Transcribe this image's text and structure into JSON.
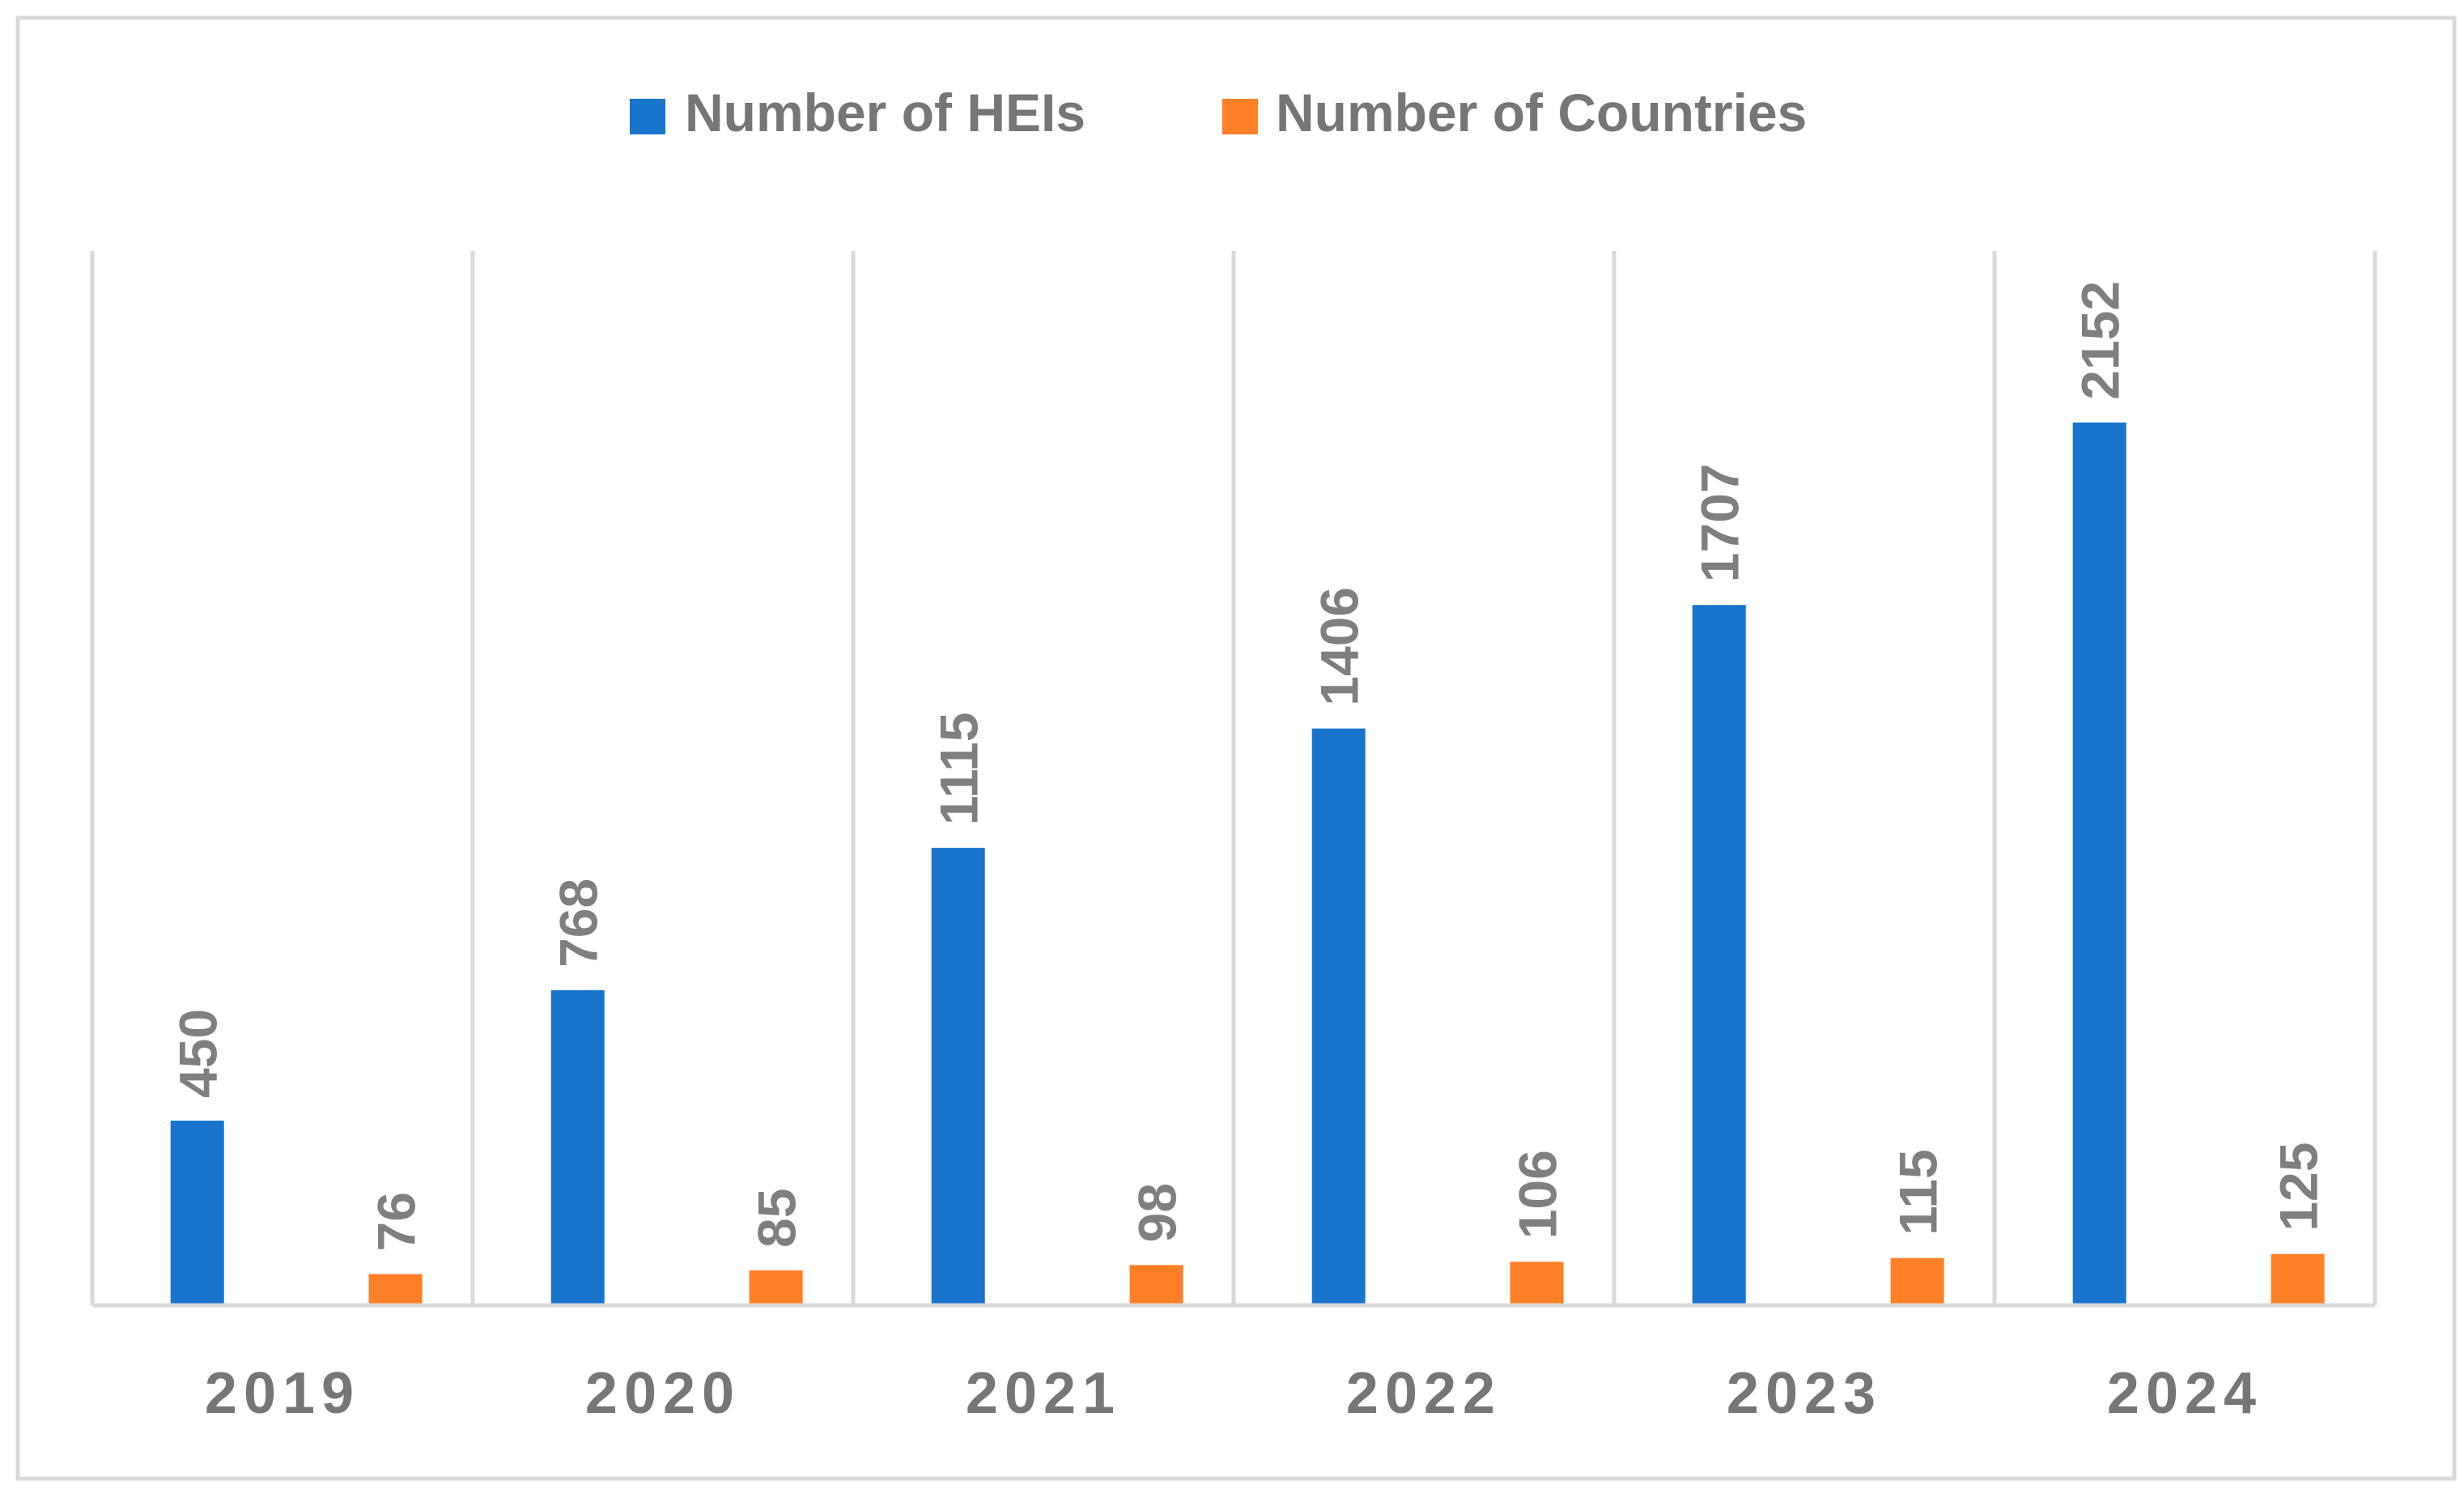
{
  "chart_data": {
    "type": "bar",
    "title": "",
    "xlabel": "",
    "ylabel": "",
    "categories": [
      "2019",
      "2020",
      "2021",
      "2022",
      "2023",
      "2024"
    ],
    "series": [
      {
        "name": "Number of HEIs",
        "color": "#1874CD",
        "values": [
          450,
          768,
          1115,
          1406,
          1707,
          2152
        ]
      },
      {
        "name": "Number of Countries",
        "color": "#FF7F27",
        "values": [
          76,
          85,
          98,
          106,
          115,
          125
        ]
      }
    ],
    "ylim": [
      0,
      2570
    ],
    "legend_position": "top-center",
    "grid": "vertical category separators",
    "data_labels": "rotated, above bars",
    "colors": {
      "label_text": "#7F7F7F",
      "category_text": "#767676",
      "legend_text": "#767676",
      "grid": "#D9D9D9",
      "frame": "#D9D9D9"
    }
  }
}
